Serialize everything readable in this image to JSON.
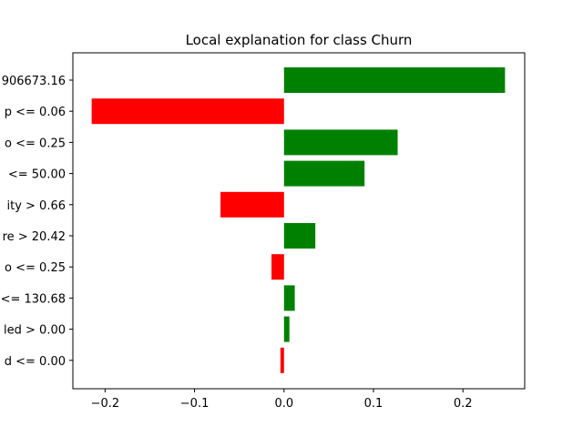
{
  "chart_data": {
    "type": "bar",
    "orientation": "horizontal",
    "title": "Local explanation for class Churn",
    "xlabel": "",
    "ylabel": "",
    "categories": [
      "906673.16",
      "p <= 0.06",
      "o <= 0.25",
      "<= 50.00",
      "ity > 0.66",
      "re > 20.42",
      "o <= 0.25",
      "<= 130.68",
      "led > 0.00",
      "d <= 0.00"
    ],
    "values": [
      0.247,
      -0.215,
      0.127,
      0.09,
      -0.071,
      0.035,
      -0.014,
      0.012,
      0.006,
      -0.004
    ],
    "xlim": [
      -0.236,
      0.269
    ],
    "xticks": [
      -0.2,
      -0.1,
      0.0,
      0.1,
      0.2
    ],
    "xtick_labels": [
      "−0.2",
      "−0.1",
      "0.0",
      "0.1",
      "0.2"
    ],
    "colors": {
      "positive": "#008000",
      "negative": "#ff0000"
    },
    "grid": false,
    "legend": "none"
  }
}
